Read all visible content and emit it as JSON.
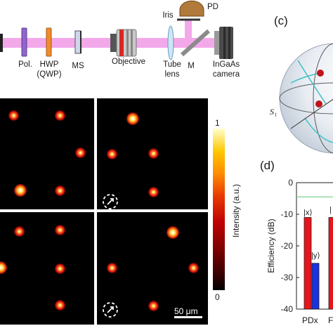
{
  "setup": {
    "labels": {
      "pol": "Pol.",
      "hwp": "HWP",
      "qwp": "(QWP)",
      "ms": "MS",
      "objective": "Objective",
      "tube1": "Tube",
      "tube2": "lens",
      "iris": "Iris",
      "pd": "PD",
      "m": "M",
      "cam1": "InGaAs",
      "cam2": "camera"
    },
    "beam_color": "#f0a0e6"
  },
  "panel_c": {
    "letter": "(c)",
    "axis_label": "S₁"
  },
  "images": {
    "colorbar": {
      "max_label": "1",
      "min_label": "0",
      "title": "Intensity  (a.u.)"
    },
    "scale_bar": "50 μm"
  },
  "panel_d": {
    "letter": "(d)",
    "ylabel": "Efficiency (dB)",
    "yticks": [
      "0",
      "-10",
      "-20",
      "-30",
      "-40"
    ],
    "ylim": [
      -40,
      0
    ],
    "bar_labels": [
      "|x⟩",
      "|y⟩"
    ],
    "bar_labels_2": "|",
    "x_labels": [
      "PDx",
      "F"
    ],
    "colors": {
      "red": "#e8141b",
      "blue": "#1a33e0",
      "line": "#7bcf8f"
    }
  },
  "chart_data": {
    "type": "bar",
    "title": "",
    "xlabel": "",
    "ylabel": "Efficiency (dB)",
    "ylim": [
      -40,
      0
    ],
    "categories": [
      "PDx",
      "F"
    ],
    "series": [
      {
        "name": "|x⟩",
        "values": [
          -11,
          -11
        ]
      },
      {
        "name": "|y⟩",
        "values": [
          -25.5,
          null
        ]
      }
    ],
    "reference_line": -4.5
  }
}
